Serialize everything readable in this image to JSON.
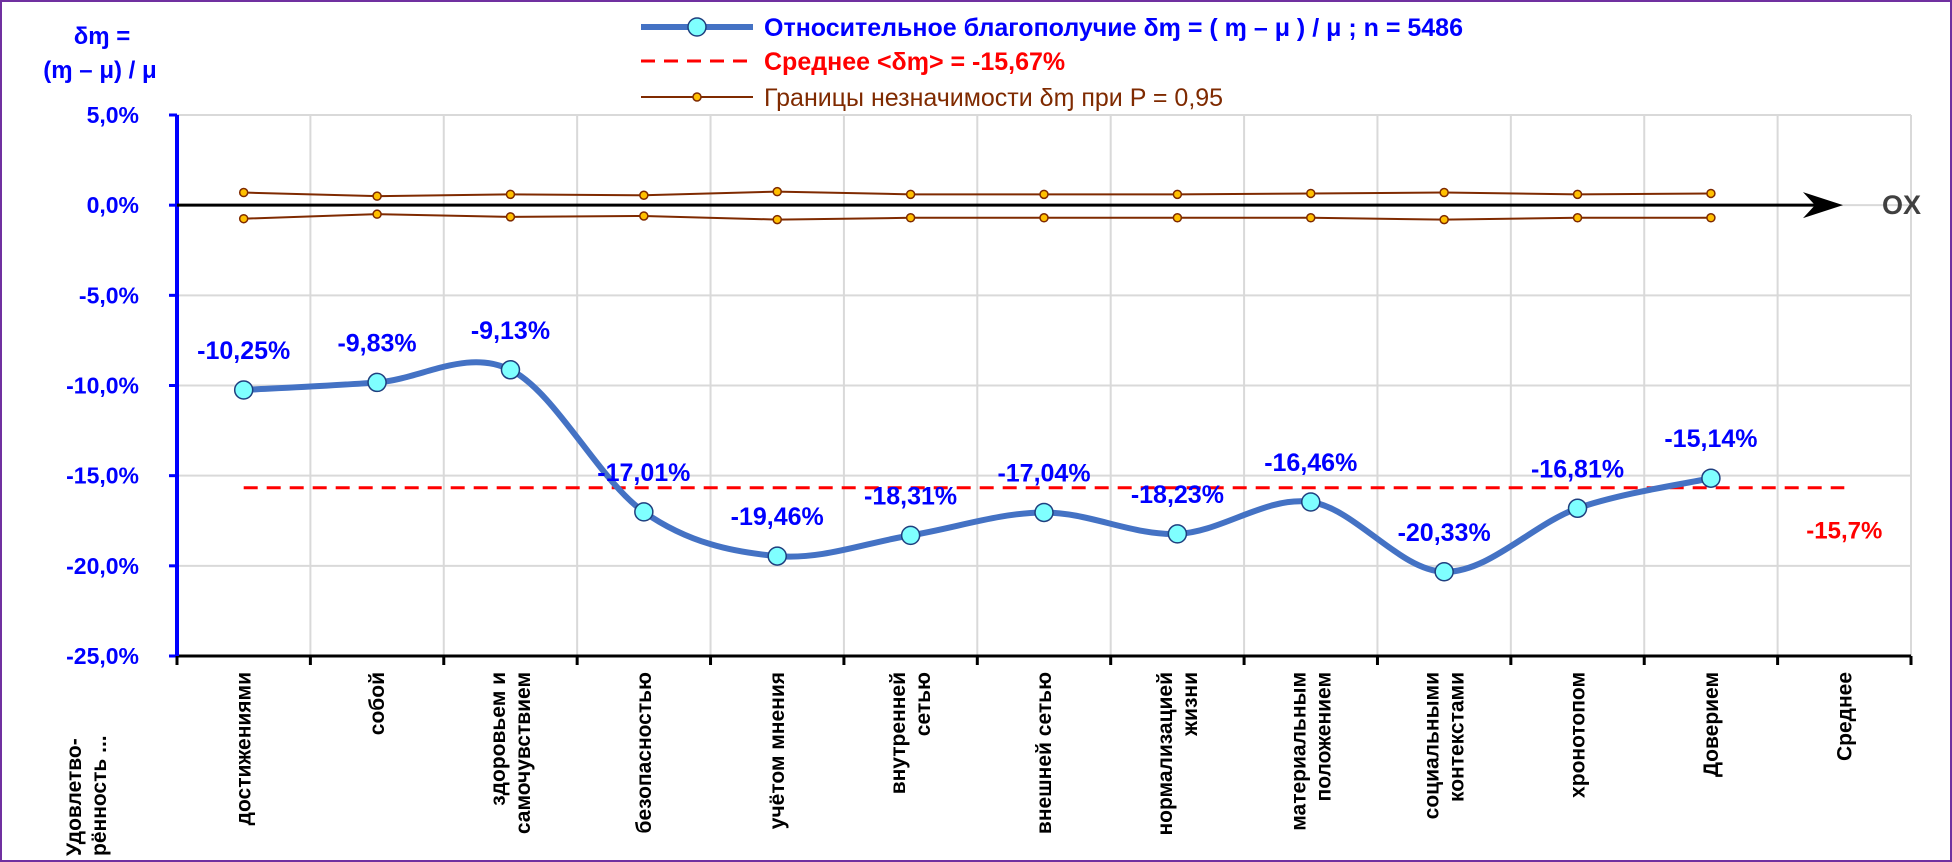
{
  "chart_data": {
    "type": "line",
    "ylabel": [
      "δɱ =",
      "(ɱ – μ) / μ"
    ],
    "xlabel": [
      "Удовлетво-",
      "рённость ..."
    ],
    "annotation": "OX",
    "categories": [
      [
        "достижениями"
      ],
      [
        "собой"
      ],
      [
        "здоровьем и",
        "самочувствием"
      ],
      [
        "безопасностью"
      ],
      [
        "учётом мнения"
      ],
      [
        "внутренней",
        "сетью"
      ],
      [
        "внешней сетью"
      ],
      [
        "нормализацией",
        "жизни"
      ],
      [
        "материальным",
        "положением"
      ],
      [
        "социальными",
        "контекстами"
      ],
      [
        "хронотопом"
      ],
      [
        "Доверием"
      ],
      [
        "Среднее"
      ]
    ],
    "series": [
      {
        "name": "Относительное благополучие δɱ = ( ɱ – μ ) / μ ; n = 5486",
        "color": "#4472c4",
        "marker_color": "#7fffff",
        "label_color": "#0000ff",
        "values": [
          -10.25,
          -9.83,
          -9.13,
          -17.01,
          -19.46,
          -18.31,
          -17.04,
          -18.23,
          -16.46,
          -20.33,
          -16.81,
          -15.14,
          null
        ],
        "value_labels": [
          "-10,25%",
          "-9,83%",
          "-9,13%",
          "-17,01%",
          "-19,46%",
          "-18,31%",
          "-17,04%",
          "-18,23%",
          "-16,46%",
          "-20,33%",
          "-16,81%",
          "-15,14%",
          null
        ]
      }
    ],
    "mean": {
      "name": "Среднее <δɱ> = -15,67%",
      "color": "#ff0000",
      "value": -15.67,
      "label": "-15,7%"
    },
    "bounds": {
      "name": "Границы незначимости δɱ при P = 0,95",
      "color": "#7f2a00",
      "marker_color": "#ffc000",
      "upper": [
        0.7,
        0.5,
        0.6,
        0.55,
        0.75,
        0.6,
        0.6,
        0.6,
        0.65,
        0.7,
        0.6,
        0.65
      ],
      "lower": [
        -0.75,
        -0.5,
        -0.65,
        -0.6,
        -0.8,
        -0.7,
        -0.7,
        -0.7,
        -0.7,
        -0.8,
        -0.7,
        -0.7
      ]
    },
    "ylim": [
      -25,
      5
    ],
    "yticks": [
      {
        "value": 5,
        "label": "5,0%"
      },
      {
        "value": 0,
        "label": "0,0%"
      },
      {
        "value": -5,
        "label": "-5,0%"
      },
      {
        "value": -10,
        "label": "-10,0%"
      },
      {
        "value": -15,
        "label": "-15,0%"
      },
      {
        "value": -20,
        "label": "-20,0%"
      },
      {
        "value": -25,
        "label": "-25,0%"
      }
    ],
    "grid": true
  }
}
